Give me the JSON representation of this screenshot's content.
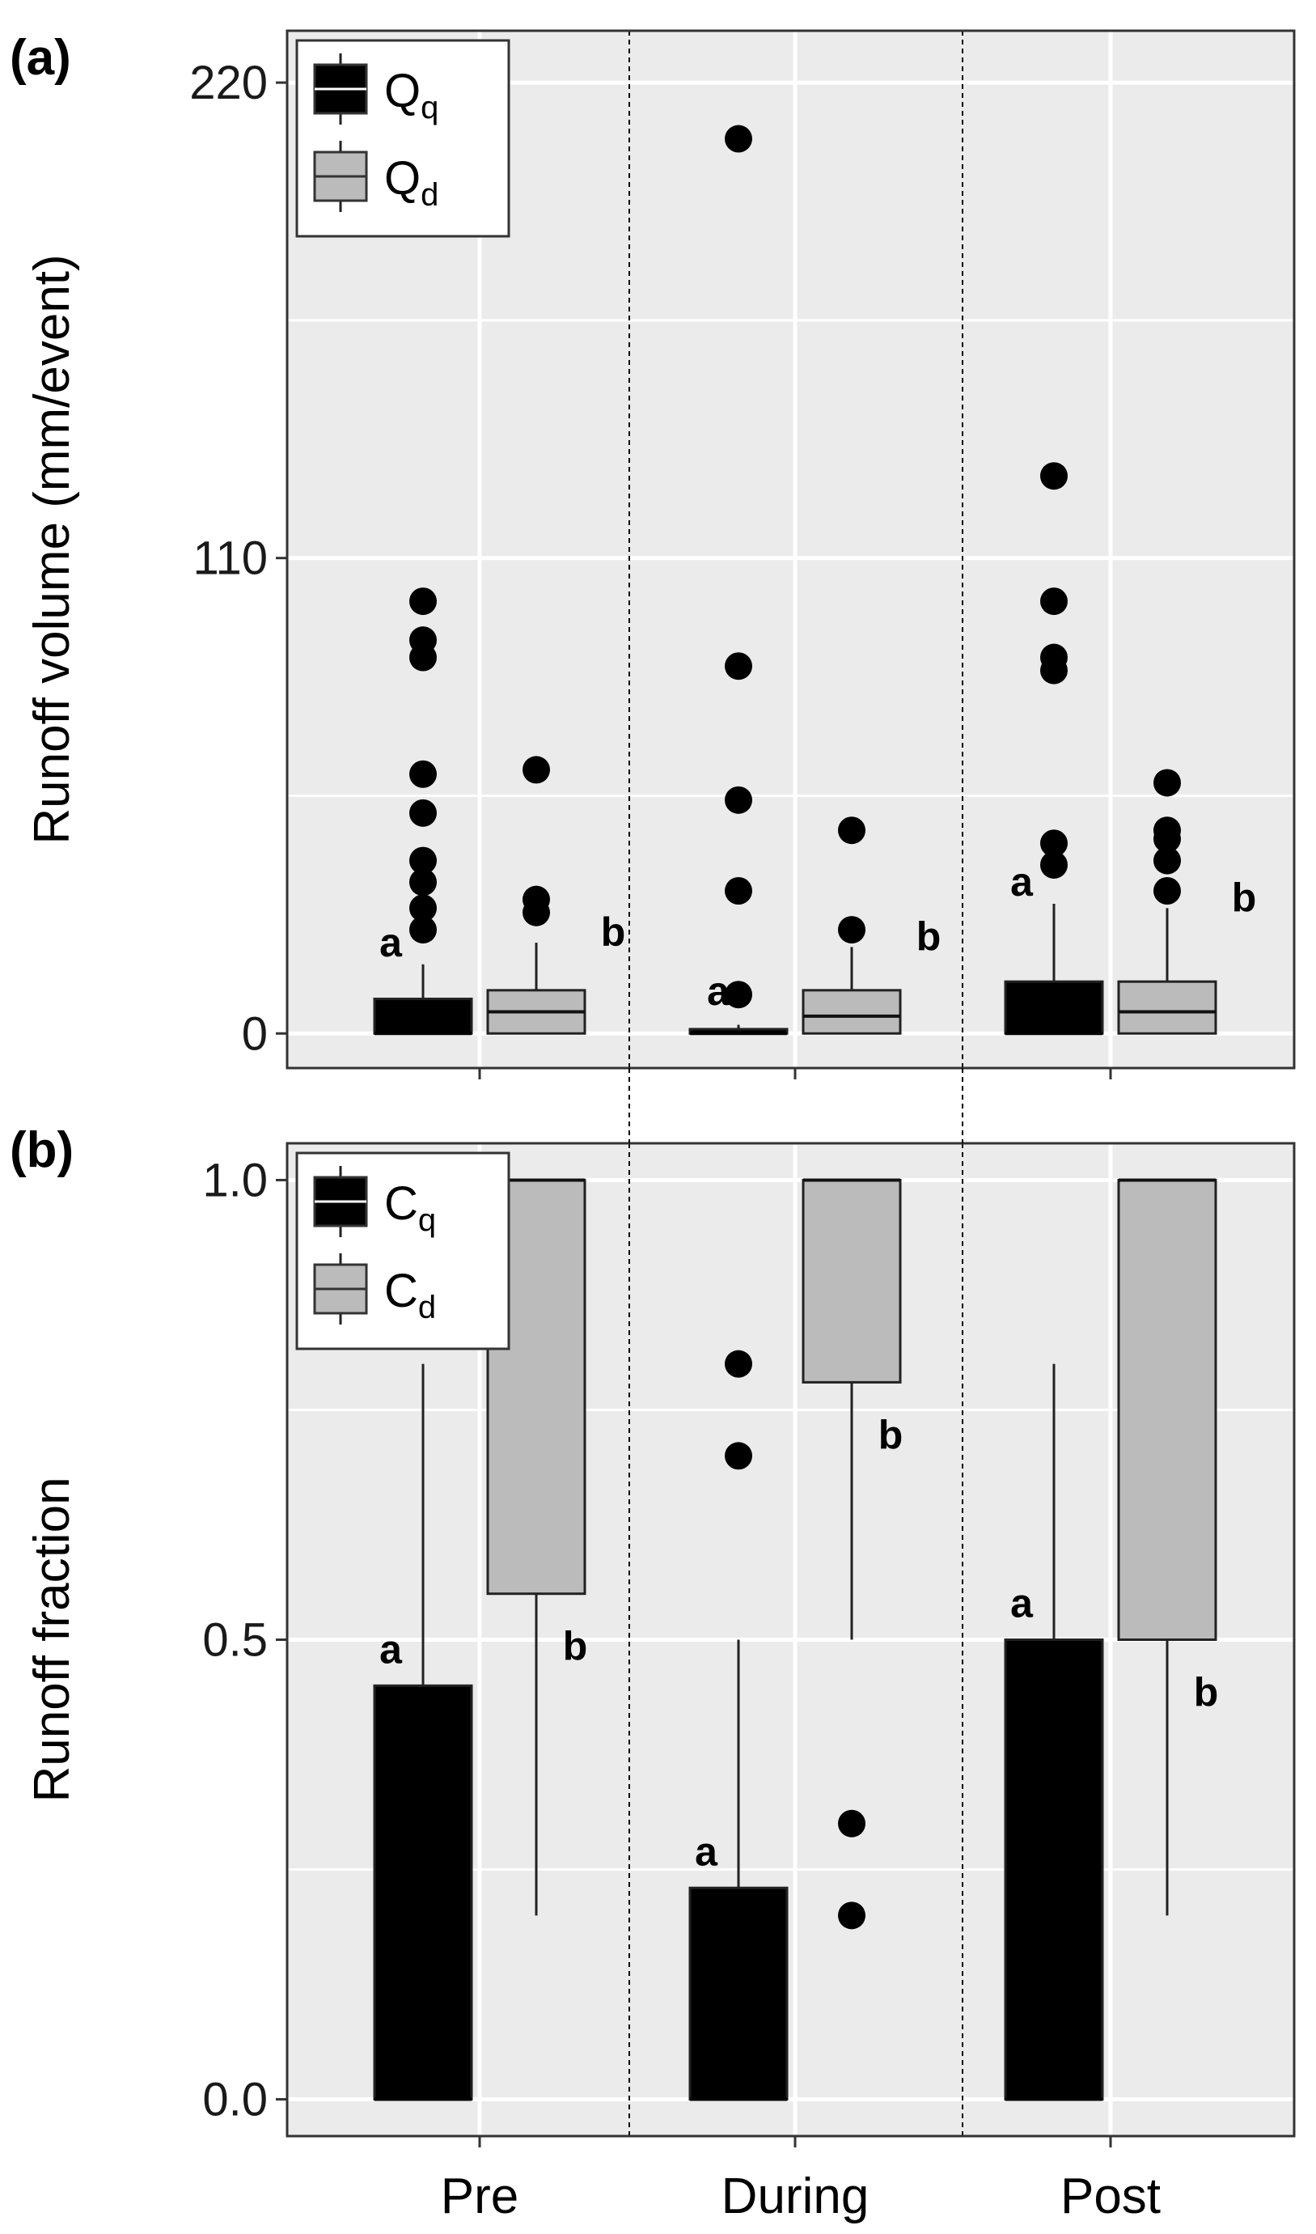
{
  "colors": {
    "qq": "#000000",
    "qd": "#bbbbbb",
    "panel_bg": "#ebebeb",
    "grid": "#ffffff",
    "outline": "#333333"
  },
  "chart_data": [
    {
      "panel": "(a)",
      "type": "boxplot",
      "ylabel": "Runoff volume (mm/event)",
      "ylim": [
        -8,
        232
      ],
      "yticks": [
        0,
        110,
        220
      ],
      "ytick_labels": [
        "0",
        "110",
        "220"
      ],
      "categories": [
        "Pre",
        "During",
        "Post"
      ],
      "legend": {
        "position": "top-left",
        "entries": [
          {
            "base": "Q",
            "sub": "q"
          },
          {
            "base": "Q",
            "sub": "d"
          }
        ]
      },
      "series": [
        {
          "name": "Qq",
          "boxes": [
            {
              "category": "Pre",
              "q1": 0,
              "median": 0,
              "q3": 8,
              "whisker_low": 0,
              "whisker_high": 16,
              "outliers": [
                24,
                29,
                35,
                40,
                51,
                60,
                87,
                91,
                100
              ],
              "letter": "a"
            },
            {
              "category": "During",
              "q1": 0,
              "median": 0,
              "q3": 1,
              "whisker_low": 0,
              "whisker_high": 2,
              "outliers": [
                9,
                33,
                54,
                85,
                207
              ],
              "letter": "a"
            },
            {
              "category": "Post",
              "q1": 0,
              "median": 0,
              "q3": 12,
              "whisker_low": 0,
              "whisker_high": 30,
              "outliers": [
                39,
                44,
                84,
                87,
                100,
                129
              ],
              "letter": "a"
            }
          ]
        },
        {
          "name": "Qd",
          "boxes": [
            {
              "category": "Pre",
              "q1": 0,
              "median": 5,
              "q3": 10,
              "whisker_low": 0,
              "whisker_high": 21,
              "outliers": [
                28,
                31,
                61
              ],
              "letter": "b"
            },
            {
              "category": "During",
              "q1": 0,
              "median": 4,
              "q3": 10,
              "whisker_low": 0,
              "whisker_high": 20,
              "outliers": [
                24,
                47
              ],
              "letter": "b"
            },
            {
              "category": "Post",
              "q1": 0,
              "median": 5,
              "q3": 12,
              "whisker_low": 0,
              "whisker_high": 29,
              "outliers": [
                33,
                40,
                45,
                47,
                58
              ],
              "letter": "b"
            }
          ]
        }
      ]
    },
    {
      "panel": "(b)",
      "type": "boxplot",
      "ylabel": "Runoff fraction",
      "xlabel": "",
      "ylim": [
        -0.04,
        1.04
      ],
      "yticks": [
        0.0,
        0.5,
        1.0
      ],
      "ytick_labels": [
        "0.0",
        "0.5",
        "1.0"
      ],
      "categories": [
        "Pre",
        "During",
        "Post"
      ],
      "legend": {
        "position": "top-left",
        "entries": [
          {
            "base": "C",
            "sub": "q"
          },
          {
            "base": "C",
            "sub": "d"
          }
        ]
      },
      "series": [
        {
          "name": "Cq",
          "boxes": [
            {
              "category": "Pre",
              "q1": 0,
              "median": 0,
              "q3": 0.45,
              "whisker_low": 0,
              "whisker_high": 0.8,
              "outliers": [],
              "letter": "a"
            },
            {
              "category": "During",
              "q1": 0,
              "median": 0,
              "q3": 0.23,
              "whisker_low": 0,
              "whisker_high": 0.5,
              "outliers": [
                0.7,
                0.8
              ],
              "letter": "a"
            },
            {
              "category": "Post",
              "q1": 0,
              "median": 0,
              "q3": 0.5,
              "whisker_low": 0,
              "whisker_high": 0.8,
              "outliers": [],
              "letter": "a"
            }
          ]
        },
        {
          "name": "Cd",
          "boxes": [
            {
              "category": "Pre",
              "q1": 0.55,
              "median": 1.0,
              "q3": 1.0,
              "whisker_low": 0.2,
              "whisker_high": 1.0,
              "outliers": [],
              "letter": "b"
            },
            {
              "category": "During",
              "q1": 0.78,
              "median": 1.0,
              "q3": 1.0,
              "whisker_low": 0.5,
              "whisker_high": 1.0,
              "outliers": [
                0.2,
                0.3
              ],
              "letter": "b"
            },
            {
              "category": "Post",
              "q1": 0.5,
              "median": 1.0,
              "q3": 1.0,
              "whisker_low": 0.2,
              "whisker_high": 1.0,
              "outliers": [],
              "letter": "b"
            }
          ]
        }
      ]
    }
  ]
}
